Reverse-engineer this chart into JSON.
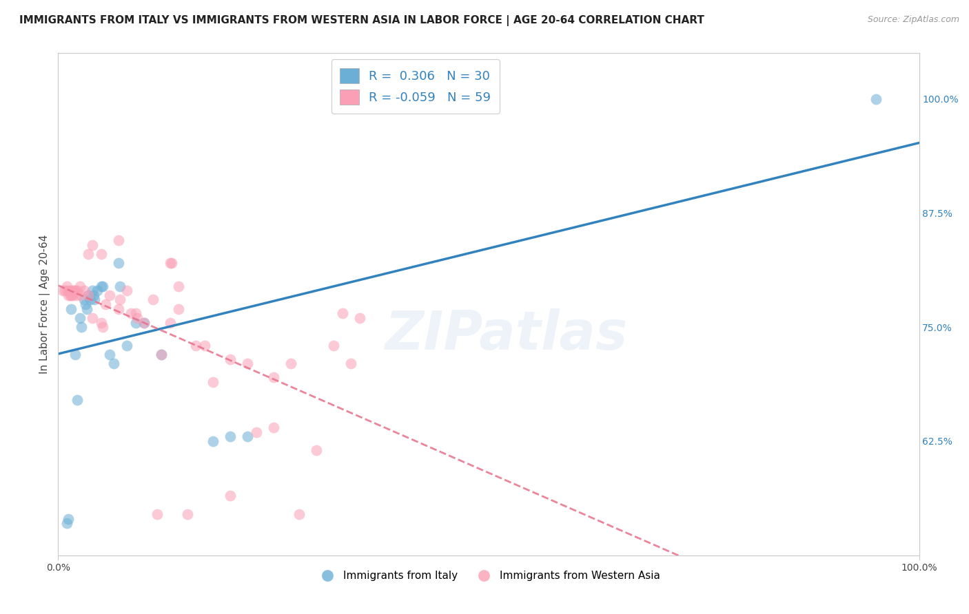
{
  "title": "IMMIGRANTS FROM ITALY VS IMMIGRANTS FROM WESTERN ASIA IN LABOR FORCE | AGE 20-64 CORRELATION CHART",
  "source": "Source: ZipAtlas.com",
  "ylabel": "In Labor Force | Age 20-64",
  "xlim": [
    0.0,
    1.0
  ],
  "ylim": [
    0.5,
    1.05
  ],
  "yticks": [
    0.625,
    0.75,
    0.875,
    1.0
  ],
  "ytick_labels": [
    "62.5%",
    "75.0%",
    "87.5%",
    "100.0%"
  ],
  "xticks": [
    0.0,
    1.0
  ],
  "xtick_labels": [
    "0.0%",
    "100.0%"
  ],
  "legend_R_blue": "0.306",
  "legend_N_blue": "30",
  "legend_R_pink": "-0.059",
  "legend_N_pink": "59",
  "blue_color": "#6baed6",
  "pink_color": "#fa9fb5",
  "trendline_blue": "#3182bd",
  "trendline_pink": "#e8708a",
  "watermark": "ZIPatlas",
  "blue_scatter": [
    [
      0.01,
      0.535
    ],
    [
      0.012,
      0.54
    ],
    [
      0.015,
      0.77
    ],
    [
      0.02,
      0.72
    ],
    [
      0.022,
      0.67
    ],
    [
      0.025,
      0.76
    ],
    [
      0.027,
      0.75
    ],
    [
      0.03,
      0.78
    ],
    [
      0.032,
      0.775
    ],
    [
      0.033,
      0.77
    ],
    [
      0.035,
      0.785
    ],
    [
      0.037,
      0.78
    ],
    [
      0.04,
      0.79
    ],
    [
      0.041,
      0.785
    ],
    [
      0.042,
      0.78
    ],
    [
      0.045,
      0.79
    ],
    [
      0.05,
      0.795
    ],
    [
      0.052,
      0.795
    ],
    [
      0.06,
      0.72
    ],
    [
      0.065,
      0.71
    ],
    [
      0.07,
      0.82
    ],
    [
      0.072,
      0.795
    ],
    [
      0.08,
      0.73
    ],
    [
      0.09,
      0.755
    ],
    [
      0.1,
      0.755
    ],
    [
      0.12,
      0.72
    ],
    [
      0.18,
      0.625
    ],
    [
      0.2,
      0.63
    ],
    [
      0.22,
      0.63
    ],
    [
      0.95,
      1.0
    ]
  ],
  "pink_scatter": [
    [
      0.005,
      0.79
    ],
    [
      0.008,
      0.79
    ],
    [
      0.01,
      0.795
    ],
    [
      0.011,
      0.79
    ],
    [
      0.012,
      0.785
    ],
    [
      0.013,
      0.79
    ],
    [
      0.014,
      0.785
    ],
    [
      0.015,
      0.785
    ],
    [
      0.016,
      0.79
    ],
    [
      0.017,
      0.785
    ],
    [
      0.018,
      0.79
    ],
    [
      0.02,
      0.79
    ],
    [
      0.021,
      0.785
    ],
    [
      0.022,
      0.79
    ],
    [
      0.025,
      0.795
    ],
    [
      0.026,
      0.785
    ],
    [
      0.03,
      0.79
    ],
    [
      0.035,
      0.785
    ],
    [
      0.04,
      0.76
    ],
    [
      0.05,
      0.755
    ],
    [
      0.052,
      0.75
    ],
    [
      0.055,
      0.775
    ],
    [
      0.06,
      0.785
    ],
    [
      0.07,
      0.77
    ],
    [
      0.072,
      0.78
    ],
    [
      0.08,
      0.79
    ],
    [
      0.085,
      0.765
    ],
    [
      0.09,
      0.765
    ],
    [
      0.092,
      0.76
    ],
    [
      0.1,
      0.755
    ],
    [
      0.11,
      0.78
    ],
    [
      0.115,
      0.545
    ],
    [
      0.12,
      0.72
    ],
    [
      0.13,
      0.755
    ],
    [
      0.14,
      0.77
    ],
    [
      0.15,
      0.545
    ],
    [
      0.16,
      0.73
    ],
    [
      0.17,
      0.73
    ],
    [
      0.18,
      0.69
    ],
    [
      0.2,
      0.715
    ],
    [
      0.22,
      0.71
    ],
    [
      0.23,
      0.635
    ],
    [
      0.25,
      0.64
    ],
    [
      0.27,
      0.71
    ],
    [
      0.28,
      0.545
    ],
    [
      0.3,
      0.615
    ],
    [
      0.32,
      0.73
    ],
    [
      0.33,
      0.765
    ],
    [
      0.34,
      0.71
    ],
    [
      0.35,
      0.76
    ],
    [
      0.05,
      0.83
    ],
    [
      0.07,
      0.845
    ],
    [
      0.035,
      0.83
    ],
    [
      0.04,
      0.84
    ],
    [
      0.13,
      0.82
    ],
    [
      0.132,
      0.82
    ],
    [
      0.14,
      0.795
    ],
    [
      0.25,
      0.695
    ],
    [
      0.2,
      0.565
    ]
  ],
  "title_fontsize": 11,
  "axis_label_fontsize": 11,
  "tick_fontsize": 10,
  "legend_fontsize": 13,
  "background_color": "#ffffff",
  "grid_color": "#cccccc",
  "grid_style": "--",
  "grid_alpha": 0.8
}
